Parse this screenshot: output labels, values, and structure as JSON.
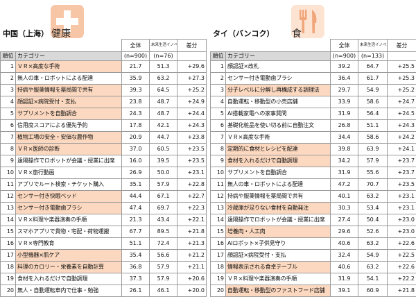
{
  "left": {
    "region": "中国（上海）",
    "topic": "健康",
    "icon": "medical-cross-icon",
    "columns": {
      "total": "全体",
      "innovator": "未来生活イノベーター",
      "diff": "差分"
    },
    "subheader": {
      "rank": "順位",
      "category": "カテゴリー",
      "n_total": "(n=900)",
      "n_innovator": "(n=76)"
    },
    "rows": [
      {
        "rank": "1",
        "category": "ＶＲ×高度な手術",
        "total": "21.7",
        "innovator": "51.3",
        "diff": "+29.6",
        "highlight": true
      },
      {
        "rank": "2",
        "category": "無人の車・ロボットによる配達",
        "total": "35.9",
        "innovator": "63.2",
        "diff": "+27.3",
        "highlight": false
      },
      {
        "rank": "3",
        "category": "持病や服薬情報を薬局間で共有",
        "total": "39.3",
        "innovator": "64.5",
        "diff": "+25.2",
        "highlight": true
      },
      {
        "rank": "4",
        "category": "顔認証×病院受付・支払",
        "total": "23.8",
        "innovator": "48.7",
        "diff": "+24.9",
        "highlight": true
      },
      {
        "rank": "5",
        "category": "サプリメントを自動調合",
        "total": "24.3",
        "innovator": "48.7",
        "diff": "+24.4",
        "highlight": true
      },
      {
        "rank": "6",
        "category": "信用度スコアによる優先予約",
        "total": "17.8",
        "innovator": "42.1",
        "diff": "+24.3",
        "highlight": false
      },
      {
        "rank": "7",
        "category": "植物工場の安全・安価な農作物",
        "total": "20.9",
        "innovator": "44.7",
        "diff": "+23.8",
        "highlight": true
      },
      {
        "rank": "8",
        "category": "ＶＲ×医師の診断",
        "total": "37.0",
        "innovator": "60.5",
        "diff": "+23.5",
        "highlight": true
      },
      {
        "rank": "9",
        "category": "遠隔操作でロボットが会議・授業に出席",
        "total": "16.0",
        "innovator": "39.5",
        "diff": "+23.5",
        "highlight": false
      },
      {
        "rank": "10",
        "category": "ＶＲ×旅行動画",
        "total": "26.9",
        "innovator": "50.0",
        "diff": "+23.1",
        "highlight": false
      },
      {
        "rank": "11",
        "category": "アプリでルート検索・チケット購入",
        "total": "35.1",
        "innovator": "57.9",
        "diff": "+22.8",
        "highlight": false
      },
      {
        "rank": "12",
        "category": "センサー付き快眠ベッド",
        "total": "44.4",
        "innovator": "67.1",
        "diff": "+22.7",
        "highlight": true
      },
      {
        "rank": "13",
        "category": "センサー付き電動歯ブラシ",
        "total": "47.4",
        "innovator": "69.7",
        "diff": "+22.3",
        "highlight": true
      },
      {
        "rank": "14",
        "category": "ＶＲ×料理や楽器演奏の手順",
        "total": "21.3",
        "innovator": "43.4",
        "diff": "+22.1",
        "highlight": false
      },
      {
        "rank": "15",
        "category": "スマホアプリで貴物・宅配・荷物運搬",
        "total": "67.7",
        "innovator": "89.5",
        "diff": "+21.8",
        "highlight": false
      },
      {
        "rank": "16",
        "category": "ＶＲ×専門教育",
        "total": "51.1",
        "innovator": "72.4",
        "diff": "+21.3",
        "highlight": false
      },
      {
        "rank": "17",
        "category": "小型機器×肌ケア",
        "total": "35.4",
        "innovator": "56.6",
        "diff": "+21.2",
        "highlight": true
      },
      {
        "rank": "18",
        "category": "料理のカロリー・栄養素を自動計算",
        "total": "36.8",
        "innovator": "57.9",
        "diff": "+21.1",
        "highlight": true
      },
      {
        "rank": "19",
        "category": "食材を入れるだけで自動調理",
        "total": "37.3",
        "innovator": "57.9",
        "diff": "+20.6",
        "highlight": false
      },
      {
        "rank": "20",
        "category": "無人・自動運転車内で仕事・勉強",
        "total": "26.1",
        "innovator": "46.1",
        "diff": "+20.0",
        "highlight": false
      }
    ]
  },
  "right": {
    "region": "タイ（バンコク）",
    "topic": "食",
    "icon": "fork-knife-icon",
    "columns": {
      "total": "全体",
      "innovator": "未来生活イノベーター",
      "diff": "差分"
    },
    "subheader": {
      "rank": "順位",
      "category": "カテゴリー",
      "n_total": "(n=900)",
      "n_innovator": "(n=133)"
    },
    "rows": [
      {
        "rank": "1",
        "category": "顔認証×改札",
        "total": "39.2",
        "innovator": "64.7",
        "diff": "+25.5",
        "highlight": false
      },
      {
        "rank": "2",
        "category": "センサー付き電動歯ブラシ",
        "total": "36.4",
        "innovator": "61.7",
        "diff": "+25.3",
        "highlight": false
      },
      {
        "rank": "3",
        "category": "分子レベルに分解し再構成する調理法",
        "total": "29.7",
        "innovator": "54.9",
        "diff": "+25.2",
        "highlight": true
      },
      {
        "rank": "4",
        "category": "自動運転・移動型の小売店舗",
        "total": "33.9",
        "innovator": "58.6",
        "diff": "+24.7",
        "highlight": false
      },
      {
        "rank": "5",
        "category": "AI搭載家電への家事質問",
        "total": "31.9",
        "innovator": "56.4",
        "diff": "+24.5",
        "highlight": false
      },
      {
        "rank": "6",
        "category": "基礎化粧品を使い切る前に自動注文",
        "total": "26.8",
        "innovator": "51.1",
        "diff": "+24.3",
        "highlight": false
      },
      {
        "rank": "7",
        "category": "ＶＲ×高度な手術",
        "total": "34.4",
        "innovator": "58.6",
        "diff": "+24.2",
        "highlight": false
      },
      {
        "rank": "8",
        "category": "定期的に食材とレシピを配達",
        "total": "39.8",
        "innovator": "63.9",
        "diff": "+24.1",
        "highlight": true
      },
      {
        "rank": "9",
        "category": "食材を入れるだけで自動調理",
        "total": "34.2",
        "innovator": "57.9",
        "diff": "+23.7",
        "highlight": true
      },
      {
        "rank": "10",
        "category": "サプリメントを自動調合",
        "total": "31.9",
        "innovator": "55.6",
        "diff": "+23.7",
        "highlight": false
      },
      {
        "rank": "11",
        "category": "無人の車・ロボットによる配達",
        "total": "47.2",
        "innovator": "70.7",
        "diff": "+23.5",
        "highlight": false
      },
      {
        "rank": "12",
        "category": "持病や服薬情報を薬局間で共有",
        "total": "40.1",
        "innovator": "63.2",
        "diff": "+23.1",
        "highlight": false
      },
      {
        "rank": "13",
        "category": "冷蔵庫が足りない食材を自動発注",
        "total": "30.3",
        "innovator": "53.4",
        "diff": "+23.1",
        "highlight": true
      },
      {
        "rank": "14",
        "category": "遠隔操作でロボットが会議・授業に出席",
        "total": "27.4",
        "innovator": "50.4",
        "diff": "+23.0",
        "highlight": false
      },
      {
        "rank": "15",
        "category": "培養肉・人工肉",
        "total": "29.6",
        "innovator": "52.6",
        "diff": "+23.0",
        "highlight": true
      },
      {
        "rank": "16",
        "category": "AIロボット×子供見守り",
        "total": "40.6",
        "innovator": "63.2",
        "diff": "+22.6",
        "highlight": false
      },
      {
        "rank": "17",
        "category": "顔認証×病院受付・支払",
        "total": "32.4",
        "innovator": "54.9",
        "diff": "+22.5",
        "highlight": false
      },
      {
        "rank": "18",
        "category": "情報表示される食卓テーブル",
        "total": "40.6",
        "innovator": "63.2",
        "diff": "+22.6",
        "highlight": true
      },
      {
        "rank": "19",
        "category": "ＶＲ×料理や楽器演奏の手順",
        "total": "31.9",
        "innovator": "54.1",
        "diff": "+22.2",
        "highlight": false
      },
      {
        "rank": "20",
        "category": "自動運転・移動型のファストフード店舗",
        "total": "39.1",
        "innovator": "60.9",
        "diff": "+21.8",
        "highlight": true
      }
    ]
  }
}
